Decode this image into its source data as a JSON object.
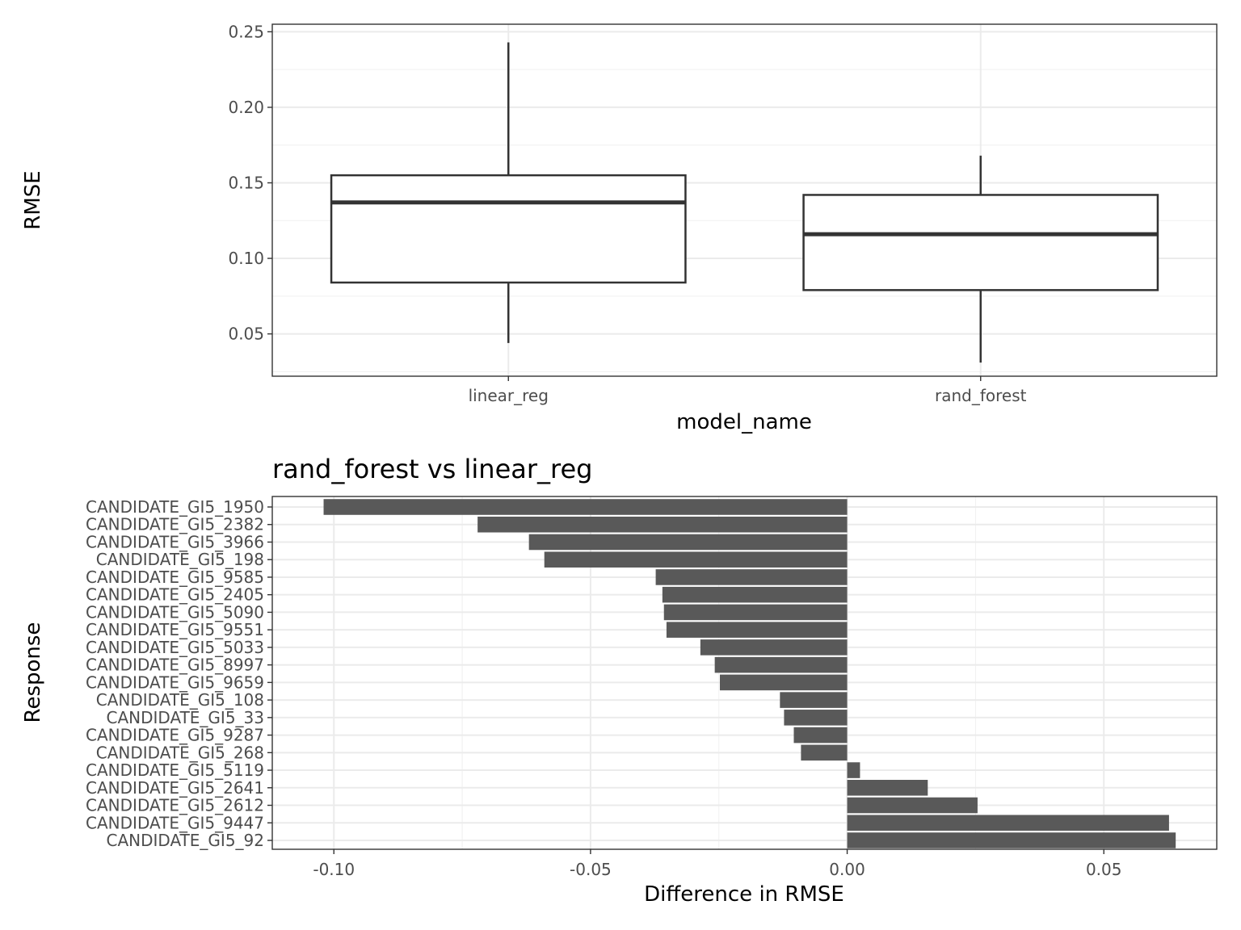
{
  "chart_data": [
    {
      "type": "box",
      "xlabel": "model_name",
      "ylabel": "RMSE",
      "ylim": [
        0.022,
        0.255
      ],
      "yticks": [
        0.05,
        0.1,
        0.15,
        0.2,
        0.25
      ],
      "ytick_labels": [
        "0.05",
        "0.10",
        "0.15",
        "0.20",
        "0.25"
      ],
      "grid": true,
      "categories": [
        "linear_reg",
        "rand_forest"
      ],
      "boxes": [
        {
          "category": "linear_reg",
          "min": 0.044,
          "q1": 0.084,
          "median": 0.137,
          "q3": 0.155,
          "max": 0.243
        },
        {
          "category": "rand_forest",
          "min": 0.031,
          "q1": 0.079,
          "median": 0.116,
          "q3": 0.142,
          "max": 0.168
        }
      ]
    },
    {
      "type": "bar",
      "orientation": "horizontal",
      "title": "rand_forest vs linear_reg",
      "xlabel": "Difference in RMSE",
      "ylabel": "Response",
      "xlim": [
        -0.112,
        0.072
      ],
      "xticks": [
        -0.1,
        -0.05,
        0.0,
        0.05
      ],
      "xtick_labels": [
        "-0.10",
        "-0.05",
        "0.00",
        "0.05"
      ],
      "grid": true,
      "bar_color": "#595959",
      "categories": [
        "CANDIDATE_GI5_1950",
        "CANDIDATE_GI5_2382",
        "CANDIDATE_GI5_3966",
        "CANDIDATE_GI5_198",
        "CANDIDATE_GI5_9585",
        "CANDIDATE_GI5_2405",
        "CANDIDATE_GI5_5090",
        "CANDIDATE_GI5_9551",
        "CANDIDATE_GI5_5033",
        "CANDIDATE_GI5_8997",
        "CANDIDATE_GI5_9659",
        "CANDIDATE_GI5_108",
        "CANDIDATE_GI5_33",
        "CANDIDATE_GI5_9287",
        "CANDIDATE_GI5_268",
        "CANDIDATE_GI5_5119",
        "CANDIDATE_GI5_2641",
        "CANDIDATE_GI5_2612",
        "CANDIDATE_GI5_9447",
        "CANDIDATE_GI5_92"
      ],
      "values": [
        -0.102,
        -0.072,
        -0.062,
        -0.059,
        -0.0373,
        -0.036,
        -0.0357,
        -0.0352,
        -0.0286,
        -0.0258,
        -0.0248,
        -0.0131,
        -0.0123,
        -0.0104,
        -0.009,
        0.0025,
        0.0157,
        0.0254,
        0.0627,
        0.064
      ]
    }
  ]
}
